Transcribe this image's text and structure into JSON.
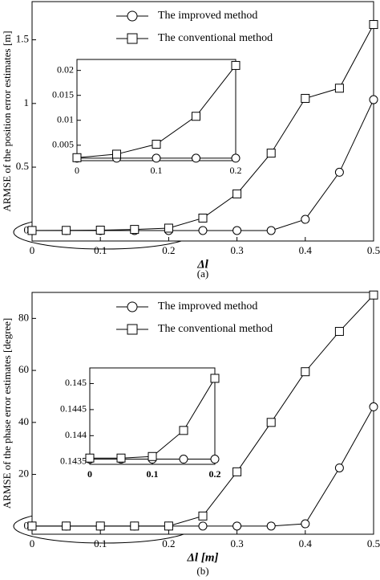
{
  "chart_data": [
    {
      "type": "line",
      "caption": "(a)",
      "xlabel": "Δl",
      "ylabel": "ARMSE of the position error estimates [m]",
      "legend": "upper center",
      "x": [
        0,
        0.05,
        0.1,
        0.15,
        0.2,
        0.25,
        0.3,
        0.35,
        0.4,
        0.45,
        0.5
      ],
      "series": [
        {
          "name": "The improved method",
          "color": "#000000",
          "marker": "circle",
          "values": [
            0.0024,
            0.0024,
            0.0024,
            0.0024,
            0.0024,
            0.0024,
            0.0024,
            0.0024,
            0.09,
            0.46,
            1.03
          ]
        },
        {
          "name": "The conventional method",
          "color": "#000000",
          "marker": "square",
          "values": [
            0.0025,
            0.0032,
            0.0052,
            0.0108,
            0.021,
            0.1,
            0.29,
            0.61,
            1.04,
            1.12,
            1.62
          ]
        }
      ],
      "xlim": [
        0,
        0.5
      ],
      "ylim": [
        -0.08,
        1.8
      ],
      "xticks": [
        0,
        0.1,
        0.2,
        0.3,
        0.4,
        0.5
      ],
      "yticks": [
        0,
        0.5,
        1,
        1.5
      ]
    },
    {
      "type": "line",
      "x": [
        0,
        0.05,
        0.1,
        0.15,
        0.2
      ],
      "series": [
        {
          "color": "#000000",
          "marker": "circle",
          "values": [
            0.0024,
            0.0024,
            0.0024,
            0.0024,
            0.0024
          ]
        },
        {
          "color": "#000000",
          "marker": "square",
          "values": [
            0.0025,
            0.0032,
            0.0052,
            0.0108,
            0.021
          ]
        }
      ],
      "xlim": [
        0,
        0.2
      ],
      "ylim": [
        0.0019,
        0.0222
      ],
      "xticks": [
        0,
        0.1,
        0.2
      ],
      "yticks": [
        0.005,
        0.01,
        0.015,
        0.02
      ]
    },
    {
      "type": "line",
      "caption": "(b)",
      "xlabel": "Δl [m]",
      "ylabel": "ARMSE of the phase error estimates [degree]",
      "legend": "upper center",
      "x": [
        0,
        0.05,
        0.1,
        0.15,
        0.2,
        0.25,
        0.3,
        0.35,
        0.4,
        0.45,
        0.5
      ],
      "series": [
        {
          "name": "The improved method",
          "color": "#000000",
          "marker": "circle",
          "values": [
            0.14355,
            0.14355,
            0.14355,
            0.14355,
            0.14355,
            0.14355,
            0.14355,
            0.14355,
            1.0,
            22.5,
            46
          ]
        },
        {
          "name": "The conventional method",
          "color": "#000000",
          "marker": "square",
          "values": [
            0.14357,
            0.14357,
            0.1436,
            0.1441,
            0.1451,
            4,
            21,
            40,
            59.5,
            75,
            89
          ]
        }
      ],
      "xlim": [
        0,
        0.5
      ],
      "ylim": [
        -3,
        90
      ],
      "xticks": [
        0,
        0.1,
        0.2,
        0.3,
        0.4,
        0.5
      ],
      "yticks": [
        0,
        20,
        40,
        60,
        80
      ]
    },
    {
      "type": "line",
      "x": [
        0,
        0.05,
        0.1,
        0.15,
        0.2
      ],
      "series": [
        {
          "color": "#000000",
          "marker": "circle",
          "values": [
            0.14355,
            0.14355,
            0.14355,
            0.14355,
            0.14355
          ]
        },
        {
          "color": "#000000",
          "marker": "square",
          "values": [
            0.14357,
            0.14357,
            0.1436,
            0.1441,
            0.1451
          ]
        }
      ],
      "xlim": [
        0,
        0.2
      ],
      "ylim": [
        0.14345,
        0.1453
      ],
      "xticks": [
        0,
        0.1,
        0.2
      ],
      "yticks": [
        0.1435,
        0.144,
        0.1445,
        0.145
      ]
    }
  ]
}
